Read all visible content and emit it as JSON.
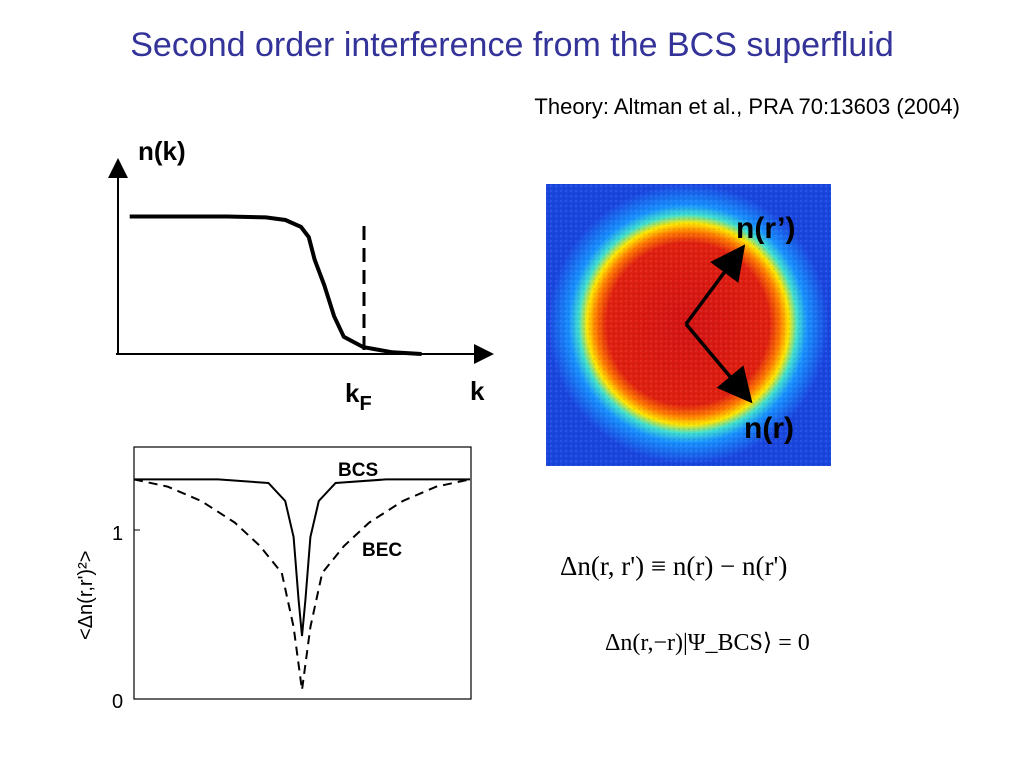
{
  "title": "Second order interference from the BCS superfluid",
  "citation": "Theory: Altman et al., PRA 70:13603 (2004)",
  "chart_data": [
    {
      "type": "line",
      "ylabel": "n(k)",
      "xlabel": "k",
      "annotations": [
        "kF"
      ],
      "kF_label": {
        "main": "k",
        "sub": "F"
      },
      "series": [
        {
          "x": [
            0,
            0.25,
            0.5,
            0.7,
            0.8,
            0.88,
            0.92,
            0.95,
            1.0,
            1.05,
            1.1,
            1.2,
            1.35,
            1.5
          ],
          "y": [
            0.8,
            0.8,
            0.8,
            0.795,
            0.78,
            0.74,
            0.68,
            0.55,
            0.4,
            0.22,
            0.1,
            0.04,
            0.01,
            0.0
          ]
        }
      ],
      "xlim": [
        -0.05,
        1.8
      ],
      "ylim": [
        0,
        1.1
      ]
    },
    {
      "type": "line",
      "ylabel": "<Δn(r,r')²>",
      "yticks": [
        0,
        1
      ],
      "ylim": [
        0,
        1.4
      ],
      "series": [
        {
          "name": "BCS",
          "x": [
            -1,
            -0.5,
            -0.2,
            -0.1,
            -0.05,
            -0.02,
            0,
            0.02,
            0.05,
            0.1,
            0.2,
            0.5,
            1
          ],
          "y": [
            1.22,
            1.22,
            1.2,
            1.1,
            0.9,
            0.55,
            0.35,
            0.55,
            0.9,
            1.1,
            1.2,
            1.22,
            1.22
          ]
        },
        {
          "name": "BEC",
          "x": [
            -1,
            -0.8,
            -0.6,
            -0.4,
            -0.25,
            -0.12,
            -0.05,
            0,
            0.05,
            0.12,
            0.25,
            0.4,
            0.6,
            0.8,
            1
          ],
          "y": [
            1.22,
            1.18,
            1.1,
            0.98,
            0.85,
            0.7,
            0.4,
            0.05,
            0.4,
            0.7,
            0.85,
            0.98,
            1.1,
            1.18,
            1.22
          ]
        }
      ],
      "labels": [
        "BCS",
        "BEC"
      ]
    }
  ],
  "image_labels": {
    "r_prime": "n(r’)",
    "r": "n(r)"
  },
  "equations": {
    "eq1": "Δn(r, r') ≡ n(r) − n(r')",
    "eq2": "Δn(r,−r)|Ψ_BCS⟩ = 0"
  },
  "colors": {
    "title": "#333399"
  }
}
